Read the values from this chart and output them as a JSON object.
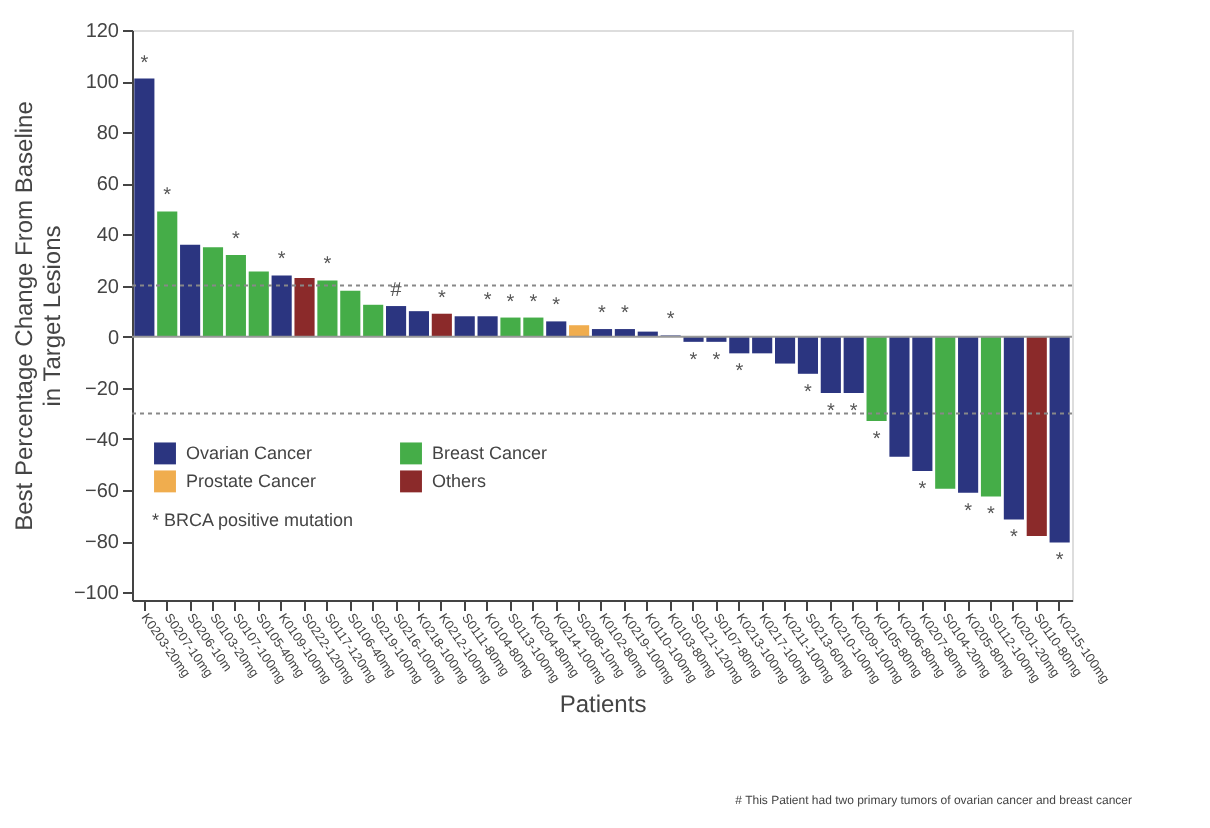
{
  "chart_data": {
    "type": "bar",
    "ylabel": "Best Percentage Change From Baseline\nin Target Lesions",
    "xlabel": "Patients",
    "categories": [
      "K0203-20mg",
      "S0207-10mg",
      "S0206-10m",
      "S0103-20mg",
      "S0107-100mg",
      "S0105-40mg",
      "K0109-100mg",
      "S0222-120mg",
      "S0117-120mg",
      "S0106-40mg",
      "S0219-100mg",
      "S0216-100mg",
      "K0218-100mg",
      "K0212-100mg",
      "S0111-80mg",
      "K0104-80mg",
      "S0113-100mg",
      "K0204-80mg",
      "K0214-100mg",
      "S0208-10mg",
      "K0102-80mg",
      "K0219-100mg",
      "K0110-100mg",
      "K0103-80mg",
      "S0121-120mg",
      "S0107-80mg",
      "K0213-100mg",
      "K0217-100mg",
      "K0211-100mg",
      "S0213-60mg",
      "K0210-100mg",
      "K0209-100mg",
      "K0105-80mg",
      "K0206-80mg",
      "K0207-80mg",
      "S0104-20mg",
      "K0205-80mg",
      "S0112-100mg",
      "K0201-20mg",
      "S0110-80mg",
      "K0215-100mg"
    ],
    "series": [
      {
        "name": "Ovarian Cancer",
        "color": "#2b3580",
        "values": [
          101,
          null,
          36,
          null,
          null,
          null,
          24,
          null,
          null,
          null,
          null,
          12,
          10,
          null,
          8,
          8,
          null,
          null,
          6,
          null,
          3,
          3,
          2,
          0.5,
          -2,
          -2,
          -6.5,
          -6.5,
          -10.5,
          -14.5,
          -22,
          -22,
          null,
          -47,
          -52.5,
          null,
          -61,
          null,
          -71.5,
          null,
          -80.5
        ],
        "value_labels": [
          "*",
          null,
          null,
          null,
          null,
          null,
          "*",
          null,
          null,
          null,
          null,
          "#",
          null,
          null,
          null,
          "*",
          null,
          null,
          "*",
          null,
          "*",
          "*",
          null,
          "*",
          "*",
          "*",
          "*",
          null,
          null,
          "*",
          "*",
          "*",
          null,
          null,
          "*",
          null,
          "*",
          null,
          "*",
          null,
          "*"
        ]
      },
      {
        "name": "Breast Cancer",
        "color": "#45ad48",
        "values": [
          null,
          49,
          null,
          35,
          32,
          25.5,
          null,
          null,
          22,
          18,
          12.5,
          null,
          null,
          null,
          null,
          null,
          7.5,
          7.5,
          null,
          null,
          null,
          null,
          null,
          null,
          null,
          null,
          null,
          null,
          null,
          null,
          null,
          null,
          -33,
          null,
          null,
          -59.5,
          null,
          -62.5,
          null,
          null,
          null
        ],
        "value_labels": [
          null,
          "*",
          null,
          null,
          "*",
          null,
          null,
          null,
          "*",
          null,
          null,
          null,
          null,
          null,
          null,
          null,
          "*",
          "*",
          null,
          null,
          null,
          null,
          null,
          null,
          null,
          null,
          null,
          null,
          null,
          null,
          null,
          null,
          "*",
          null,
          null,
          null,
          null,
          "*",
          null,
          null,
          null
        ]
      },
      {
        "name": "Prostate Cancer",
        "color": "#f0ad4e",
        "values": [
          null,
          null,
          null,
          null,
          null,
          null,
          null,
          null,
          null,
          null,
          null,
          null,
          null,
          null,
          null,
          null,
          null,
          null,
          null,
          4.5,
          null,
          null,
          null,
          null,
          null,
          null,
          null,
          null,
          null,
          null,
          null,
          null,
          null,
          null,
          null,
          null,
          null,
          null,
          null,
          null,
          null
        ]
      },
      {
        "name": "Others",
        "color": "#8b2a2a",
        "values": [
          null,
          null,
          null,
          null,
          null,
          null,
          null,
          23,
          null,
          null,
          null,
          null,
          null,
          9,
          null,
          null,
          null,
          null,
          null,
          null,
          null,
          null,
          null,
          null,
          null,
          null,
          null,
          null,
          null,
          null,
          null,
          null,
          null,
          null,
          null,
          null,
          null,
          null,
          null,
          -78,
          null
        ],
        "value_labels": [
          null,
          null,
          null,
          null,
          null,
          null,
          null,
          null,
          null,
          null,
          null,
          null,
          null,
          "*",
          null,
          null,
          null,
          null,
          null,
          null,
          null,
          null,
          null,
          null,
          null,
          null,
          null,
          null,
          null,
          null,
          null,
          null,
          null,
          null,
          null,
          null,
          null,
          null,
          null,
          null,
          null
        ]
      }
    ],
    "ylim": [
      -103,
      120
    ],
    "yticks": [
      -100,
      -80,
      -60,
      -40,
      -20,
      0,
      20,
      40,
      60,
      80,
      100,
      120
    ],
    "ref_lines": [
      {
        "axis": "y",
        "value": 20,
        "line_style": "dotted",
        "color": "#888888"
      },
      {
        "axis": "y",
        "value": -30,
        "line_style": "dotted",
        "color": "#888888"
      },
      {
        "axis": "y",
        "value": 0,
        "line_style": "solid",
        "color": "#999999"
      }
    ],
    "legend": "bottom left",
    "grid": false,
    "annotations": [
      "* BRCA positive mutation",
      "# This Patient had two primary tumors of ovarian cancer and breast cancer"
    ]
  }
}
